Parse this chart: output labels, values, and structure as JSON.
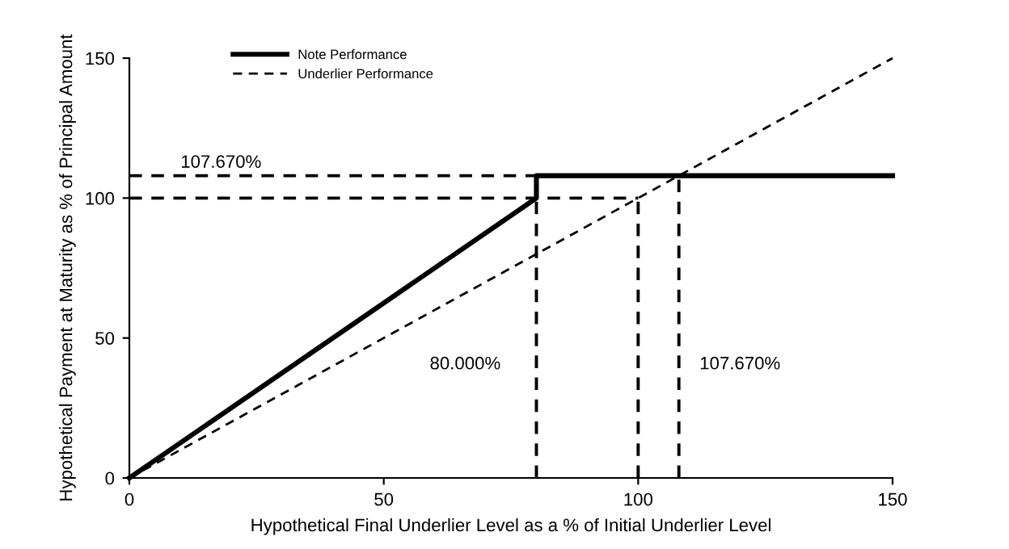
{
  "chart_data": {
    "type": "line",
    "xlabel": "Hypothetical Final Underlier Level as a % of Initial Underlier Level",
    "ylabel": "Hypothetical Payment at Maturity as % of Principal Amount",
    "xlim": [
      0,
      150
    ],
    "ylim": [
      0,
      150
    ],
    "xticks": [
      0,
      50,
      100,
      150
    ],
    "yticks": [
      0,
      50,
      100,
      150
    ],
    "grid": false,
    "legend": "top left",
    "marker": "none",
    "series": [
      {
        "name": "Note Performance",
        "color": "#000000",
        "line_style": "solid",
        "x": [
          0,
          80,
          80,
          150
        ],
        "values": [
          0,
          100,
          108,
          108
        ]
      },
      {
        "name": "Underlier Performance",
        "color": "#000000",
        "line_style": "dashed",
        "x": [
          0,
          150
        ],
        "values": [
          0,
          150
        ]
      },
      {
        "color": "#000000",
        "line_style": "dashed",
        "x": [
          0,
          80
        ],
        "values": [
          108,
          108
        ]
      },
      {
        "color": "#000000",
        "line_style": "dashed",
        "x": [
          0,
          100
        ],
        "values": [
          100,
          100
        ]
      },
      {
        "color": "#000000",
        "line_style": "dashed",
        "x": [
          80,
          80
        ],
        "values": [
          0,
          100
        ]
      },
      {
        "color": "#000000",
        "line_style": "dashed",
        "x": [
          100,
          100
        ],
        "values": [
          0,
          100
        ]
      },
      {
        "color": "#000000",
        "line_style": "dashed",
        "x": [
          108,
          108
        ],
        "values": [
          0,
          108
        ]
      }
    ],
    "annotations": [
      "107.670%",
      "80.000%",
      "107.670%"
    ]
  }
}
